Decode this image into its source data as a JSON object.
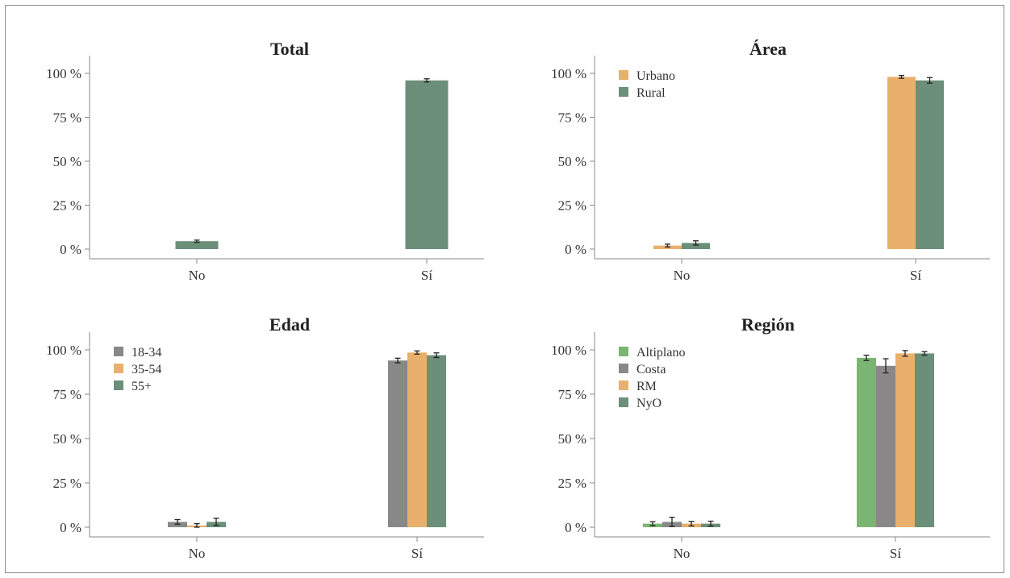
{
  "chart_data": [
    {
      "type": "bar",
      "title": "Total",
      "categories": [
        "No",
        "Sí"
      ],
      "ylim": [
        0,
        100
      ],
      "yticks": [
        "0 %",
        "25 %",
        "50 %",
        "75 %",
        "100 %"
      ],
      "legend": false,
      "series": [
        {
          "color": "#6b8f78",
          "values": [
            4.5,
            96.0
          ],
          "errors": [
            0.6,
            0.9
          ]
        }
      ]
    },
    {
      "type": "bar",
      "title": "Área",
      "categories": [
        "No",
        "Sí"
      ],
      "ylim": [
        0,
        100
      ],
      "yticks": [
        "0 %",
        "25 %",
        "50 %",
        "75 %",
        "100 %"
      ],
      "legend": true,
      "legend_position": "top-left",
      "series": [
        {
          "name": "Urbano",
          "color": "#e8b06c",
          "values": [
            2.0,
            98.0
          ],
          "errors": [
            0.8,
            0.8
          ]
        },
        {
          "name": "Rural",
          "color": "#6b8f78",
          "values": [
            3.5,
            96.0
          ],
          "errors": [
            1.2,
            1.6
          ]
        }
      ]
    },
    {
      "type": "bar",
      "title": "Edad",
      "categories": [
        "No",
        "Sí"
      ],
      "ylim": [
        0,
        100
      ],
      "yticks": [
        "0 %",
        "25 %",
        "50 %",
        "75 %",
        "100 %"
      ],
      "legend": true,
      "legend_position": "top-left",
      "series": [
        {
          "name": "18-34",
          "color": "#888888",
          "values": [
            3.0,
            94.0
          ],
          "errors": [
            1.3,
            1.3
          ]
        },
        {
          "name": "35-54",
          "color": "#e8b06c",
          "values": [
            1.0,
            98.5
          ],
          "errors": [
            1.0,
            0.9
          ]
        },
        {
          "name": "55+",
          "color": "#6b8f78",
          "values": [
            3.0,
            97.0
          ],
          "errors": [
            2.0,
            1.3
          ]
        }
      ]
    },
    {
      "type": "bar",
      "title": "Región",
      "categories": [
        "No",
        "Sí"
      ],
      "ylim": [
        0,
        100
      ],
      "yticks": [
        "0 %",
        "25 %",
        "50 %",
        "75 %",
        "100 %"
      ],
      "legend": true,
      "legend_position": "top-left",
      "series": [
        {
          "name": "Altiplano",
          "color": "#7ab573",
          "values": [
            2.0,
            95.5
          ],
          "errors": [
            1.1,
            1.5
          ]
        },
        {
          "name": "Costa",
          "color": "#888888",
          "values": [
            3.0,
            91.0
          ],
          "errors": [
            2.6,
            4.0
          ]
        },
        {
          "name": "RM",
          "color": "#e8b06c",
          "values": [
            2.0,
            98.0
          ],
          "errors": [
            1.3,
            1.6
          ]
        },
        {
          "name": "NyO",
          "color": "#6b8f78",
          "values": [
            2.0,
            98.0
          ],
          "errors": [
            1.4,
            1.0
          ]
        }
      ]
    }
  ]
}
